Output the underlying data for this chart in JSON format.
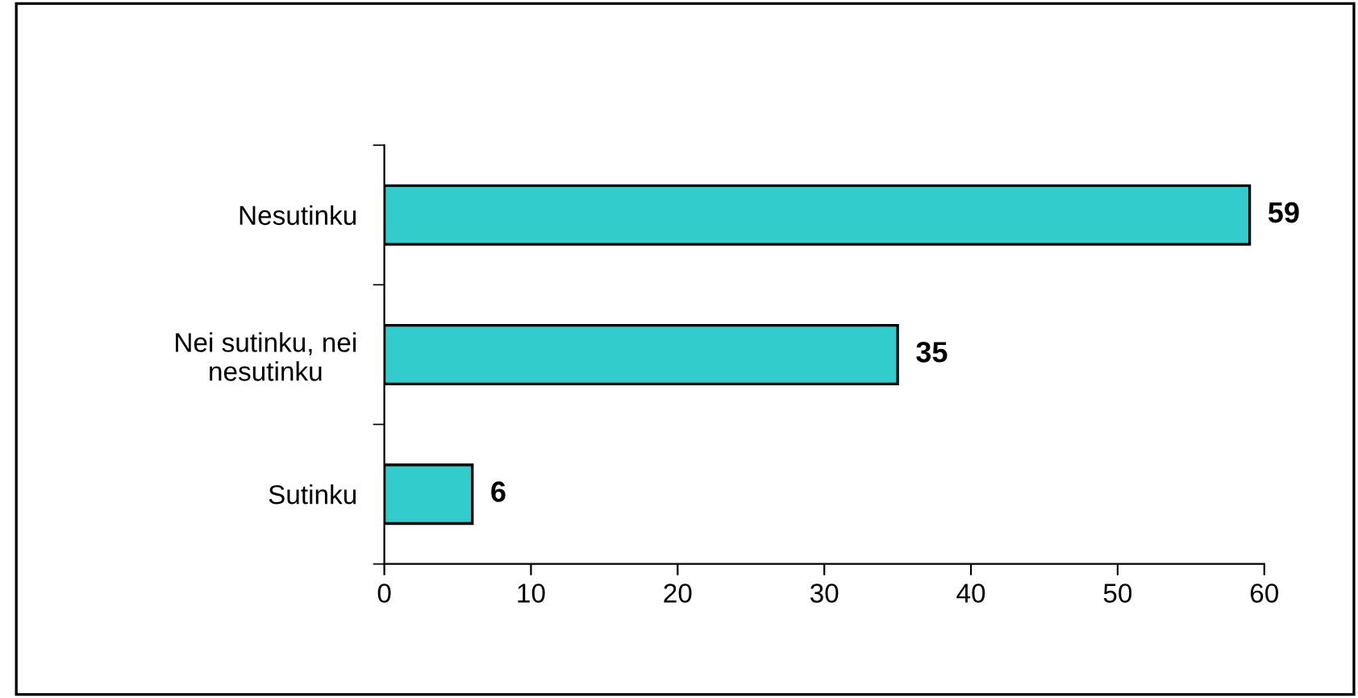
{
  "chart_data": {
    "type": "bar",
    "orientation": "horizontal",
    "categories": [
      "Nesutinku",
      "Nei sutinku, nei\nnesutinku",
      "Sutinku"
    ],
    "values": [
      59,
      35,
      6
    ],
    "color": "#33cccc",
    "xlim": [
      0,
      60
    ],
    "xticks": [
      0,
      10,
      20,
      30,
      40,
      50,
      60
    ],
    "data_labels": true,
    "grid": false,
    "legend": false
  }
}
